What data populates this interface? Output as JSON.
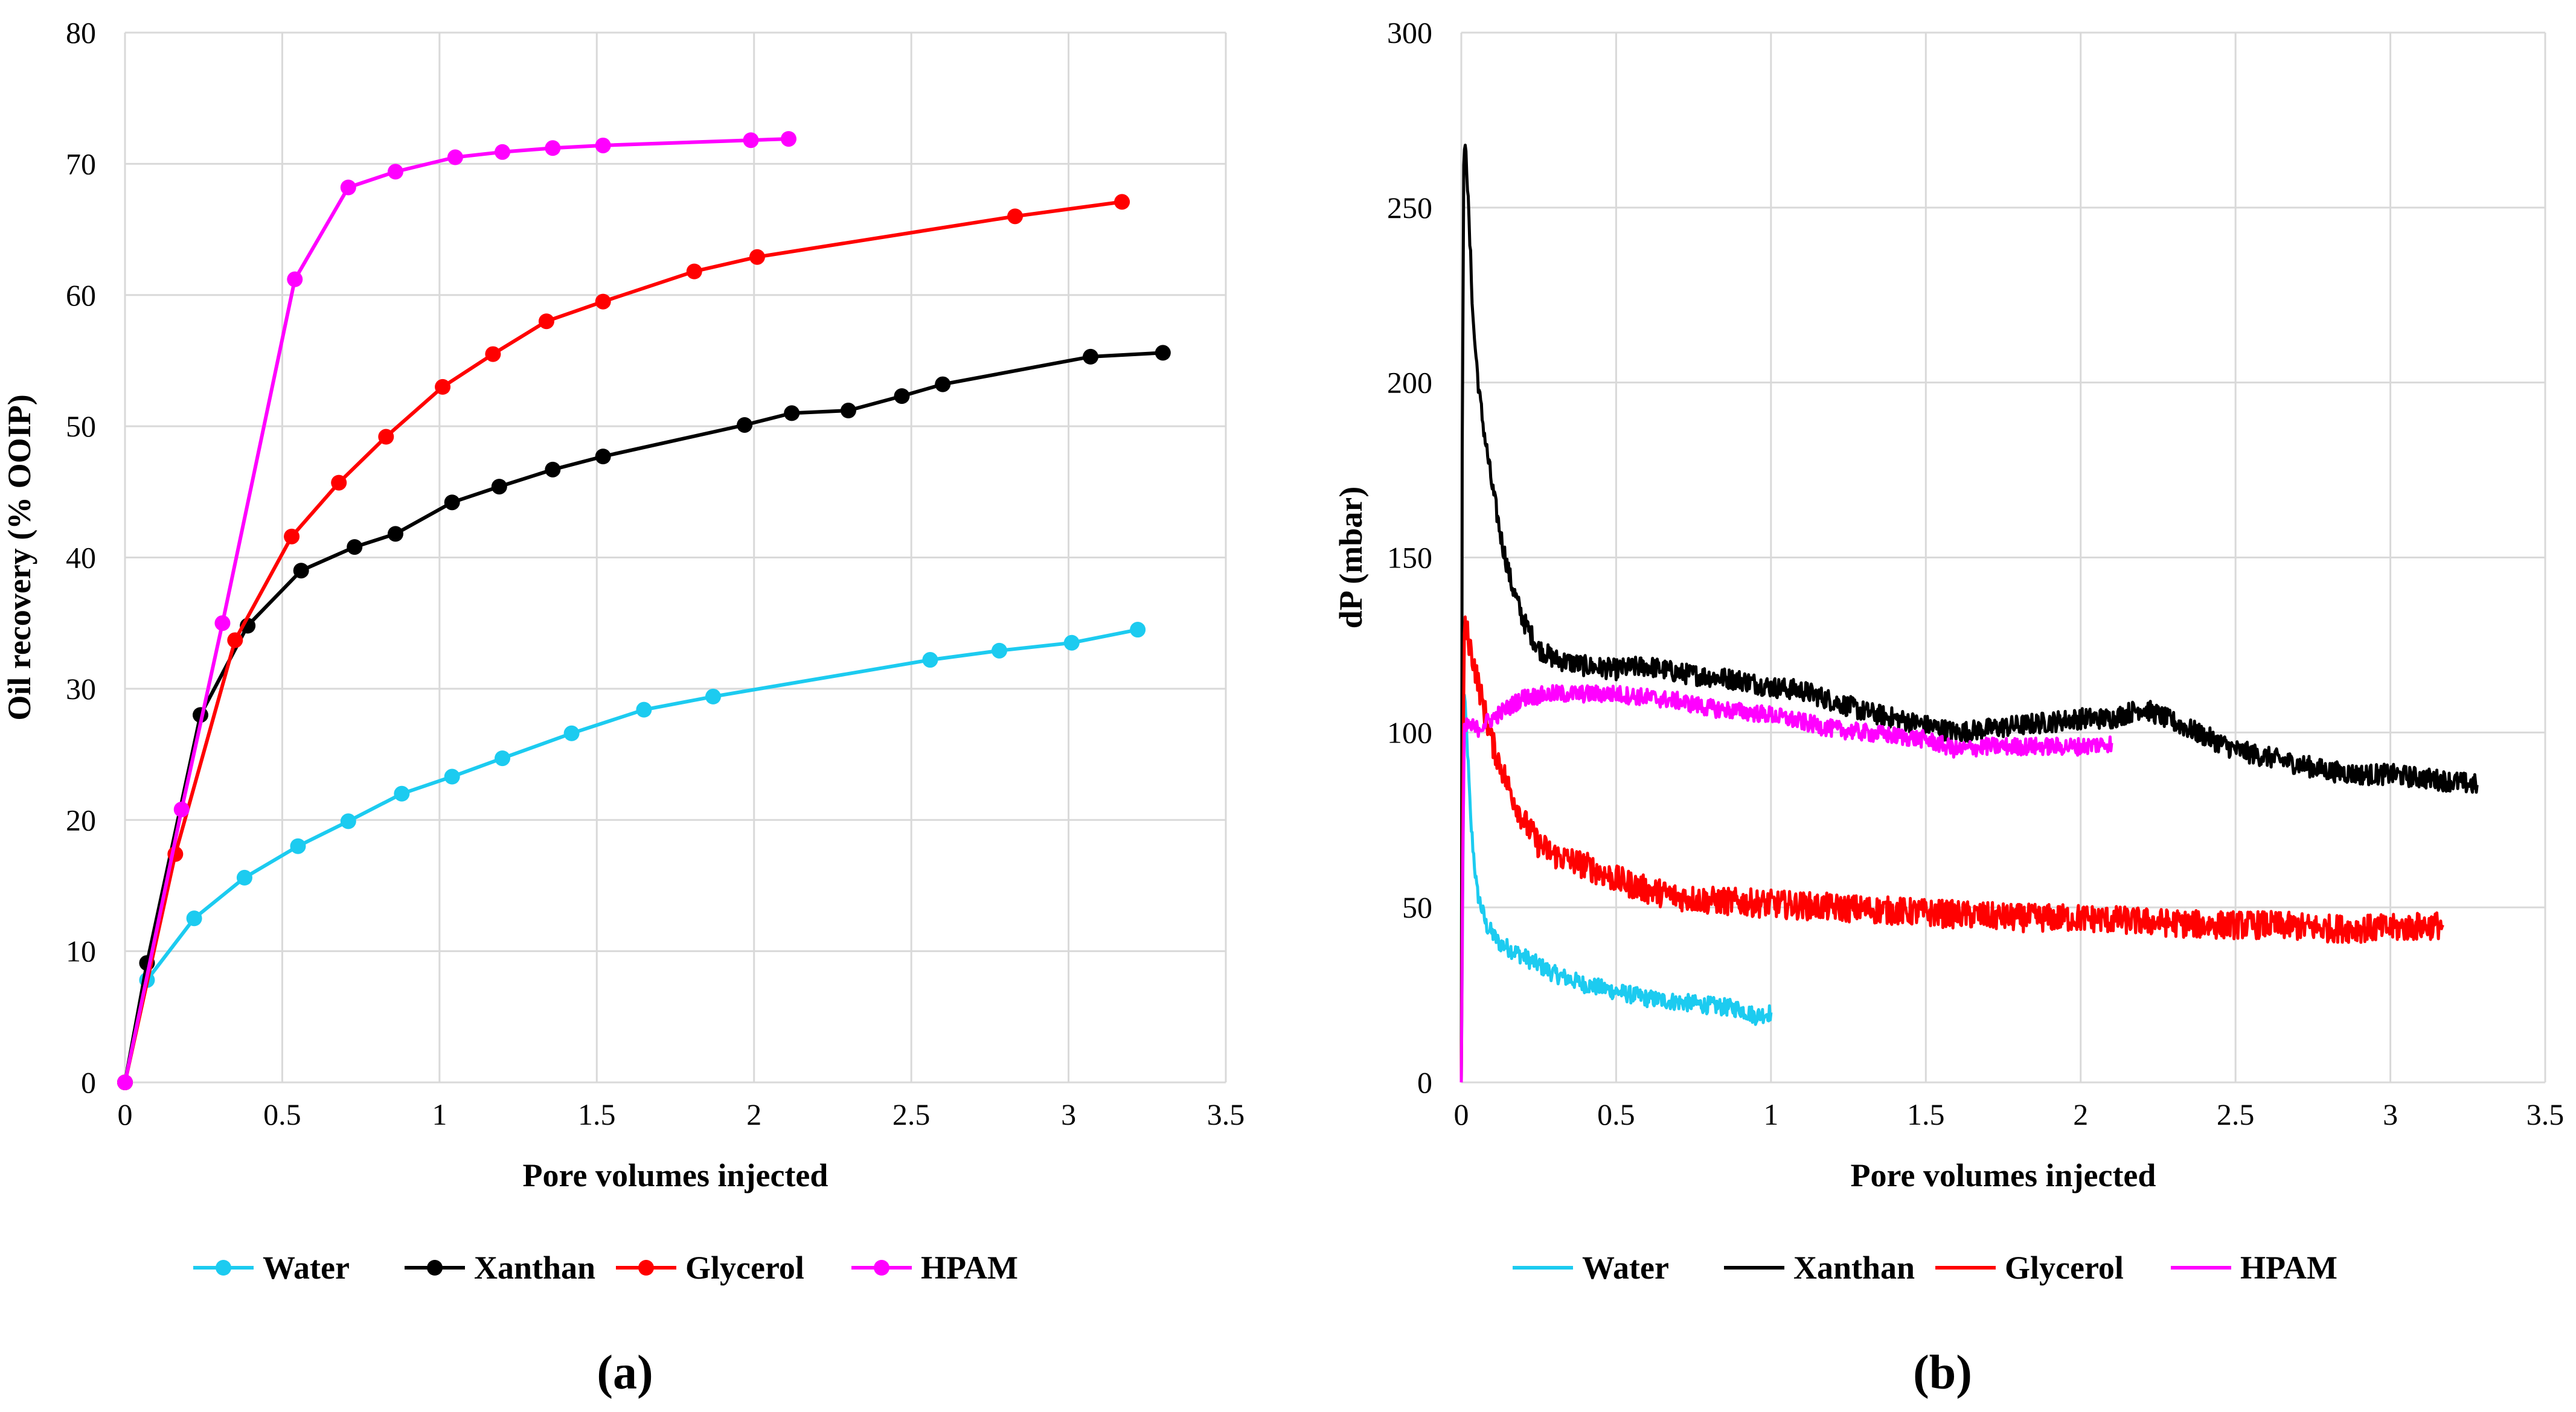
{
  "chart_data": [
    {
      "id": "a",
      "type": "line",
      "panel_label": "(a)",
      "xlabel": "Pore volumes injected",
      "ylabel": "Oil recovery (% OOIP)",
      "xlim": [
        0,
        3.5
      ],
      "ylim": [
        0,
        80
      ],
      "xticks": [
        0,
        0.5,
        1,
        1.5,
        2,
        2.5,
        3,
        3.5
      ],
      "xtick_labels": [
        "0",
        "0.5",
        "1",
        "1.5",
        "2",
        "2.5",
        "3",
        "3.5"
      ],
      "yticks": [
        0,
        10,
        20,
        30,
        40,
        50,
        60,
        70,
        80
      ],
      "ytick_labels": [
        "0",
        "10",
        "20",
        "30",
        "40",
        "50",
        "60",
        "70",
        "80"
      ],
      "grid": true,
      "markers": true,
      "legend_position": "bottom",
      "series": [
        {
          "name": "Water",
          "color": "#1ccbf0",
          "x": [
            0,
            0.07,
            0.22,
            0.38,
            0.55,
            0.71,
            0.88,
            1.04,
            1.2,
            1.42,
            1.65,
            1.87,
            2.56,
            2.78,
            3.01,
            3.22
          ],
          "y": [
            0,
            7.8,
            12.5,
            15.6,
            18.0,
            19.9,
            22.0,
            23.3,
            24.7,
            26.6,
            28.4,
            29.4,
            32.2,
            32.9,
            33.5,
            34.5
          ]
        },
        {
          "name": "Xanthan",
          "color": "#000000",
          "x": [
            0,
            0.07,
            0.24,
            0.39,
            0.56,
            0.73,
            0.86,
            1.04,
            1.19,
            1.36,
            1.52,
            1.97,
            2.12,
            2.3,
            2.47,
            2.6,
            3.07,
            3.3
          ],
          "y": [
            0,
            9.1,
            28.0,
            34.8,
            39.0,
            40.8,
            41.8,
            44.2,
            45.4,
            46.7,
            47.7,
            50.1,
            51.0,
            51.2,
            52.3,
            53.2,
            55.3,
            55.6
          ]
        },
        {
          "name": "Glycerol",
          "color": "#ff0000",
          "x": [
            0,
            0.16,
            0.35,
            0.53,
            0.68,
            0.83,
            1.01,
            1.17,
            1.34,
            1.52,
            1.81,
            2.01,
            2.83,
            3.17
          ],
          "y": [
            0,
            17.4,
            33.7,
            41.6,
            45.7,
            49.2,
            53.0,
            55.5,
            58.0,
            59.5,
            61.8,
            62.9,
            66.0,
            67.1
          ]
        },
        {
          "name": "HPAM",
          "color": "#ff00ff",
          "x": [
            0,
            0.18,
            0.31,
            0.54,
            0.71,
            0.86,
            1.05,
            1.2,
            1.36,
            1.52,
            1.99,
            2.11
          ],
          "y": [
            0,
            20.8,
            35.0,
            61.2,
            68.2,
            69.4,
            70.5,
            70.9,
            71.2,
            71.4,
            71.8,
            71.9
          ]
        }
      ]
    },
    {
      "id": "b",
      "type": "line",
      "panel_label": "(b)",
      "xlabel": "Pore volumes injected",
      "ylabel": "dP (mbar)",
      "xlim": [
        0,
        3.5
      ],
      "ylim": [
        0,
        300
      ],
      "xticks": [
        0,
        0.5,
        1,
        1.5,
        2,
        2.5,
        3,
        3.5
      ],
      "xtick_labels": [
        "0",
        "0.5",
        "1",
        "1.5",
        "2",
        "2.5",
        "3",
        "3.5"
      ],
      "yticks": [
        0,
        50,
        100,
        150,
        200,
        250,
        300
      ],
      "ytick_labels": [
        "0",
        "50",
        "100",
        "150",
        "200",
        "250",
        "300"
      ],
      "grid": true,
      "markers": false,
      "legend_position": "bottom",
      "series": [
        {
          "name": "Water",
          "color": "#1ccbf0",
          "noise": 2.5,
          "x": [
            0,
            0.005,
            0.01,
            0.02,
            0.03,
            0.05,
            0.08,
            0.12,
            0.2,
            0.3,
            0.4,
            0.5,
            0.6,
            0.7,
            0.8,
            0.9,
            0.95,
            1.0
          ],
          "y": [
            0,
            60,
            110,
            95,
            75,
            55,
            45,
            40,
            36,
            31,
            28,
            26,
            24,
            23,
            22,
            21,
            19,
            20
          ]
        },
        {
          "name": "Xanthan",
          "color": "#000000",
          "noise": 3,
          "x": [
            0,
            0.003,
            0.008,
            0.015,
            0.025,
            0.04,
            0.06,
            0.08,
            0.1,
            0.13,
            0.16,
            0.2,
            0.25,
            0.3,
            0.4,
            0.5,
            0.6,
            0.7,
            0.8,
            0.9,
            1.0,
            1.1,
            1.2,
            1.3,
            1.4,
            1.5,
            1.6,
            1.7,
            1.8,
            1.9,
            2.0,
            2.1,
            2.2,
            2.3,
            2.4,
            2.5,
            2.6,
            2.7,
            2.8,
            2.9,
            3.0,
            3.1,
            3.2,
            3.28
          ],
          "y": [
            0,
            180,
            262,
            268,
            245,
            215,
            195,
            182,
            170,
            155,
            143,
            132,
            124,
            121,
            119,
            118,
            119,
            117,
            116,
            115,
            113,
            112,
            109,
            106,
            104,
            102,
            100,
            101,
            102,
            103,
            104,
            104,
            107,
            103,
            99,
            95,
            93,
            91,
            89,
            88,
            88,
            87,
            86,
            85
          ]
        },
        {
          "name": "Glycerol",
          "color": "#ff0000",
          "noise": 4,
          "x": [
            0,
            0.005,
            0.01,
            0.02,
            0.04,
            0.07,
            0.1,
            0.15,
            0.2,
            0.25,
            0.3,
            0.4,
            0.5,
            0.6,
            0.7,
            0.8,
            1.0,
            1.2,
            1.4,
            1.6,
            1.8,
            2.0,
            2.2,
            2.4,
            2.6,
            2.8,
            3.0,
            3.17
          ],
          "y": [
            0,
            80,
            130,
            128,
            120,
            108,
            97,
            85,
            75,
            68,
            65,
            62,
            58,
            55,
            53,
            52,
            51,
            50,
            49,
            48,
            47,
            47,
            46,
            45,
            45,
            44,
            44,
            45
          ]
        },
        {
          "name": "HPAM",
          "color": "#ff00ff",
          "noise": 2.5,
          "x": [
            0,
            0.005,
            0.01,
            0.02,
            0.05,
            0.1,
            0.15,
            0.2,
            0.3,
            0.4,
            0.5,
            0.6,
            0.7,
            0.8,
            0.9,
            1.0,
            1.1,
            1.2,
            1.3,
            1.4,
            1.5,
            1.6,
            1.7,
            1.8,
            1.9,
            2.0,
            2.1
          ],
          "y": [
            0,
            65,
            100,
            102,
            101,
            104,
            107,
            110,
            111,
            111,
            111,
            110,
            109,
            107,
            106,
            105,
            103,
            101,
            100,
            99,
            98,
            95,
            96,
            96,
            96,
            96,
            97
          ]
        }
      ]
    }
  ]
}
